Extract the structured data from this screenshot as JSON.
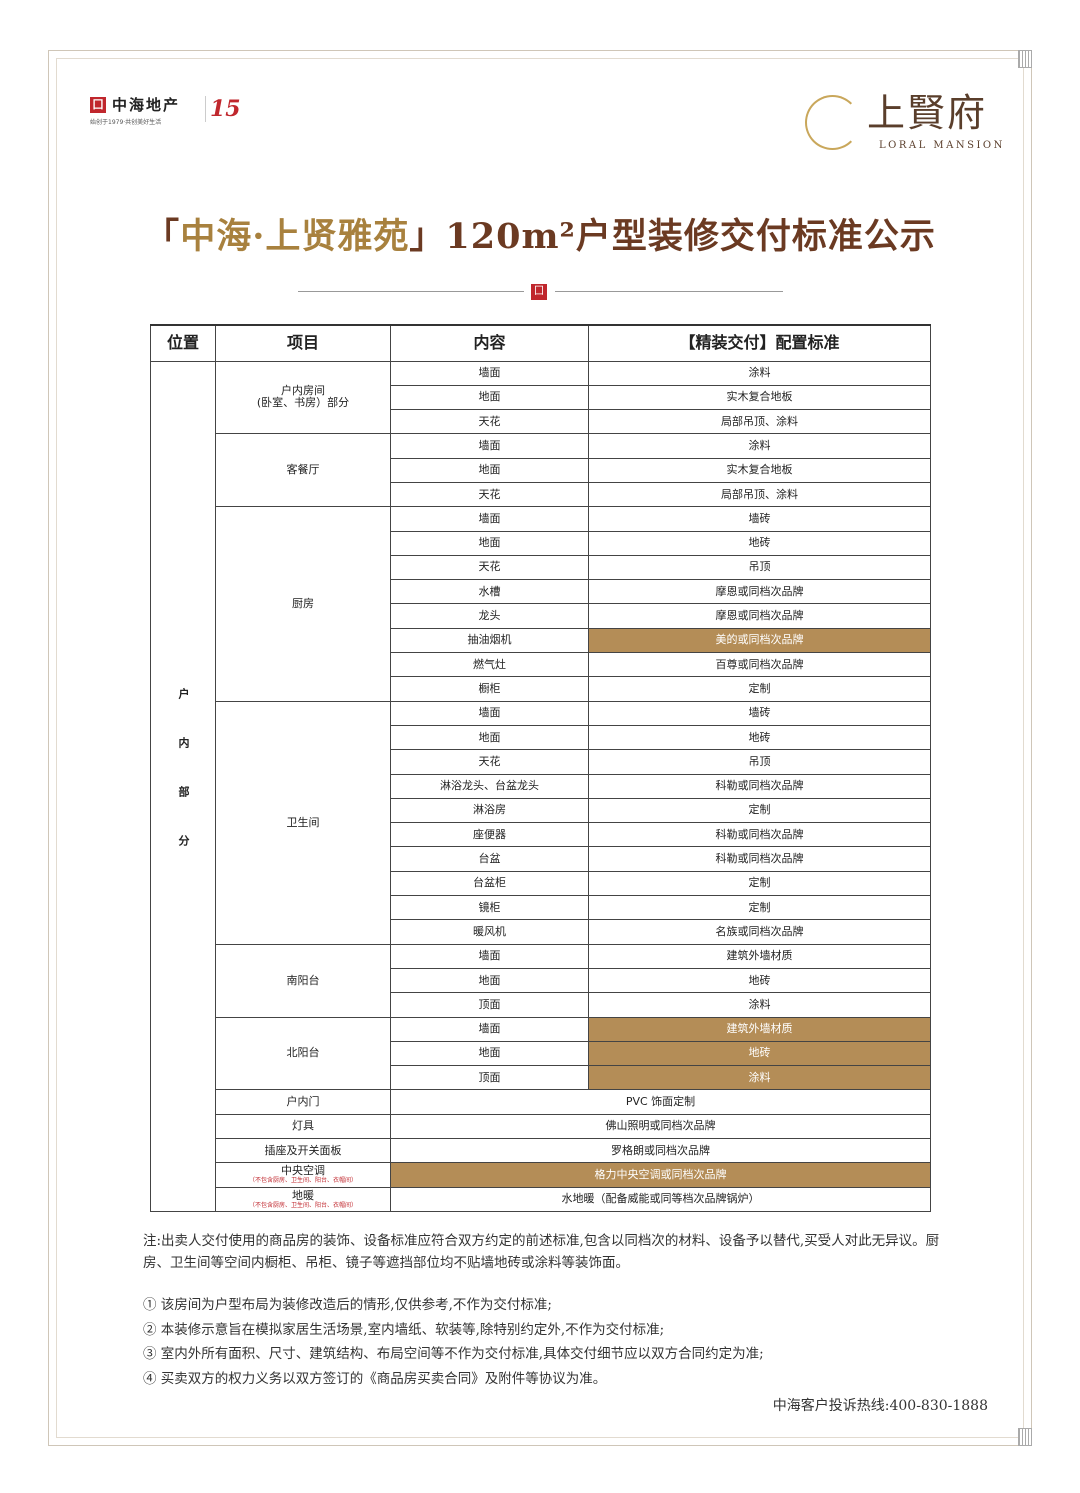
{
  "header": {
    "developer_name": "中海地产",
    "developer_tagline": "始创于1979·共创美好生活",
    "anniversary": "15",
    "project_name": "上賢府",
    "project_name_en": "LORAL MANSION"
  },
  "title": {
    "bracket_open": "「",
    "project": "中海·上贤雅苑",
    "bracket_close": "」",
    "rest": "120m²户型装修交付标准公示"
  },
  "table": {
    "headers": [
      "位置",
      "项目",
      "内容",
      "【精装交付】配置标准"
    ],
    "section": "户内部分",
    "highlight_color": "#b48d57",
    "groups": [
      {
        "name": "户内房间\n(卧室、书房）部分",
        "rows": [
          [
            "墙面",
            "涂料",
            false
          ],
          [
            "地面",
            "实木复合地板",
            false
          ],
          [
            "天花",
            "局部吊顶、涂料",
            false
          ]
        ]
      },
      {
        "name": "客餐厅",
        "rows": [
          [
            "墙面",
            "涂料",
            false
          ],
          [
            "地面",
            "实木复合地板",
            false
          ],
          [
            "天花",
            "局部吊顶、涂料",
            false
          ]
        ]
      },
      {
        "name": "厨房",
        "rows": [
          [
            "墙面",
            "墙砖",
            false
          ],
          [
            "地面",
            "地砖",
            false
          ],
          [
            "天花",
            "吊顶",
            false
          ],
          [
            "水槽",
            "摩恩或同档次品牌",
            false
          ],
          [
            "龙头",
            "摩恩或同档次品牌",
            false
          ],
          [
            "抽油烟机",
            "美的或同档次品牌",
            true
          ],
          [
            "燃气灶",
            "百尊或同档次品牌",
            false
          ],
          [
            "橱柜",
            "定制",
            false
          ]
        ]
      },
      {
        "name": "卫生间",
        "rows": [
          [
            "墙面",
            "墙砖",
            false
          ],
          [
            "地面",
            "地砖",
            false
          ],
          [
            "天花",
            "吊顶",
            false
          ],
          [
            "淋浴龙头、台盆龙头",
            "科勒或同档次品牌",
            false
          ],
          [
            "淋浴房",
            "定制",
            false
          ],
          [
            "座便器",
            "科勒或同档次品牌",
            false
          ],
          [
            "台盆",
            "科勒或同档次品牌",
            false
          ],
          [
            "台盆柜",
            "定制",
            false
          ],
          [
            "镜柜",
            "定制",
            false
          ],
          [
            "暖风机",
            "名族或同档次品牌",
            false
          ]
        ]
      },
      {
        "name": "南阳台",
        "rows": [
          [
            "墙面",
            "建筑外墙材质",
            false
          ],
          [
            "地面",
            "地砖",
            false
          ],
          [
            "顶面",
            "涂料",
            false
          ]
        ]
      },
      {
        "name": "北阳台",
        "rows": [
          [
            "墙面",
            "建筑外墙材质",
            true
          ],
          [
            "地面",
            "地砖",
            true
          ],
          [
            "顶面",
            "涂料",
            true
          ]
        ]
      }
    ],
    "singles": [
      {
        "name": "户内门",
        "note": "",
        "value": "PVC 饰面定制",
        "hl": false
      },
      {
        "name": "灯具",
        "note": "",
        "value": "佛山照明或同档次品牌",
        "hl": false
      },
      {
        "name": "插座及开关面板",
        "note": "",
        "value": "罗格朗或同档次品牌",
        "hl": false
      },
      {
        "name": "中央空调",
        "note": "（不包含厨房、卫生间、阳台、衣帽间）",
        "value": "格力中央空调或同档次品牌",
        "hl": true
      },
      {
        "name": "地暖",
        "note": "（不包含厨房、卫生间、阳台、衣帽间）",
        "value": "水地暖（配备威能或同等档次品牌锅炉）",
        "hl": false
      }
    ]
  },
  "notes": {
    "main": "注:出卖人交付使用的商品房的装饰、设备标准应符合双方约定的前述标准,包含以同档次的材料、设备予以替代,买受人对此无异议。厨房、卫生间等空间内橱柜、吊柜、镜子等遮挡部位均不贴墙地砖或涂料等装饰面。",
    "items": [
      "① 该房间为户型布局为装修改造后的情形,仅供参考,不作为交付标准;",
      "② 本装修示意旨在模拟家居生活场景,室内墙纸、软装等,除特别约定外,不作为交付标准;",
      "③ 室内外所有面积、尺寸、建筑结构、布局空间等不作为交付标准,具体交付细节应以双方合同约定为准;",
      "④ 买卖双方的权力义务以双方签订的《商品房买卖合同》及附件等协议为准。"
    ],
    "hotline": "中海客户投诉热线:400-830-1888"
  }
}
